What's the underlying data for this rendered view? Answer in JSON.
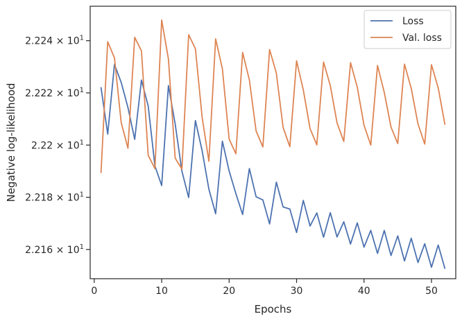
{
  "chart_data": {
    "type": "line",
    "xlabel": "Epochs",
    "ylabel": "Negative log-likelihood",
    "xlim": [
      -0.6,
      53.6
    ],
    "ylim": [
      22.1488,
      22.2532
    ],
    "grid": false,
    "legend_position": "top-right",
    "x_ticks": [
      0,
      10,
      20,
      30,
      40,
      50
    ],
    "x_tick_labels": [
      "0",
      "10",
      "20",
      "30",
      "40",
      "50"
    ],
    "y_ticks": [
      22.16,
      22.18,
      22.2,
      22.22,
      22.24
    ],
    "y_tick_labels": [
      {
        "mantissa": "2.216",
        "exp": "1"
      },
      {
        "mantissa": "2.218",
        "exp": "1"
      },
      {
        "mantissa": "2.22",
        "exp": "1"
      },
      {
        "mantissa": "2.222",
        "exp": "1"
      },
      {
        "mantissa": "2.224",
        "exp": "1"
      }
    ],
    "y_tick_times": "× 10",
    "x": [
      1,
      2,
      3,
      4,
      5,
      6,
      7,
      8,
      9,
      10,
      11,
      12,
      13,
      14,
      15,
      16,
      17,
      18,
      19,
      20,
      21,
      22,
      23,
      24,
      25,
      26,
      27,
      28,
      29,
      30,
      31,
      32,
      33,
      34,
      35,
      36,
      37,
      38,
      39,
      40,
      41,
      42,
      43,
      44,
      45,
      46,
      47,
      48,
      49,
      50,
      51,
      52
    ],
    "series": [
      {
        "name": "Loss",
        "color": "#4c72b0",
        "values": [
          22.2222,
          22.2042,
          22.2309,
          22.224,
          22.2144,
          22.2022,
          22.2249,
          22.215,
          22.192,
          22.1845,
          22.2228,
          22.2081,
          22.19,
          22.1799,
          22.2094,
          22.1978,
          22.1831,
          22.1737,
          22.2015,
          22.1901,
          22.1814,
          22.1734,
          22.191,
          22.1802,
          22.179,
          22.1698,
          22.1858,
          22.1763,
          22.1755,
          22.1665,
          22.1788,
          22.169,
          22.174,
          22.1647,
          22.1741,
          22.1648,
          22.1706,
          22.1621,
          22.1702,
          22.1609,
          22.1673,
          22.1585,
          22.1673,
          22.1577,
          22.1652,
          22.1556,
          22.1643,
          22.155,
          22.1622,
          22.1532,
          22.1617,
          22.1526
        ]
      },
      {
        "name": "Val. loss",
        "color": "#dd8452",
        "values": [
          22.1893,
          22.2396,
          22.2334,
          22.2086,
          22.1988,
          22.2413,
          22.2361,
          22.1961,
          22.191,
          22.2479,
          22.233,
          22.195,
          22.1908,
          22.2423,
          22.2369,
          22.2106,
          22.1938,
          22.2407,
          22.2292,
          22.2023,
          22.1967,
          22.2355,
          22.225,
          22.2054,
          22.1993,
          22.2366,
          22.2276,
          22.2068,
          22.1994,
          22.2323,
          22.2211,
          22.2063,
          22.2001,
          22.2318,
          22.2228,
          22.2085,
          22.2014,
          22.2316,
          22.2222,
          22.2076,
          22.2,
          22.2305,
          22.2202,
          22.2069,
          22.2006,
          22.231,
          22.2217,
          22.2081,
          22.2004,
          22.2308,
          22.2219,
          22.2078
        ]
      }
    ]
  }
}
